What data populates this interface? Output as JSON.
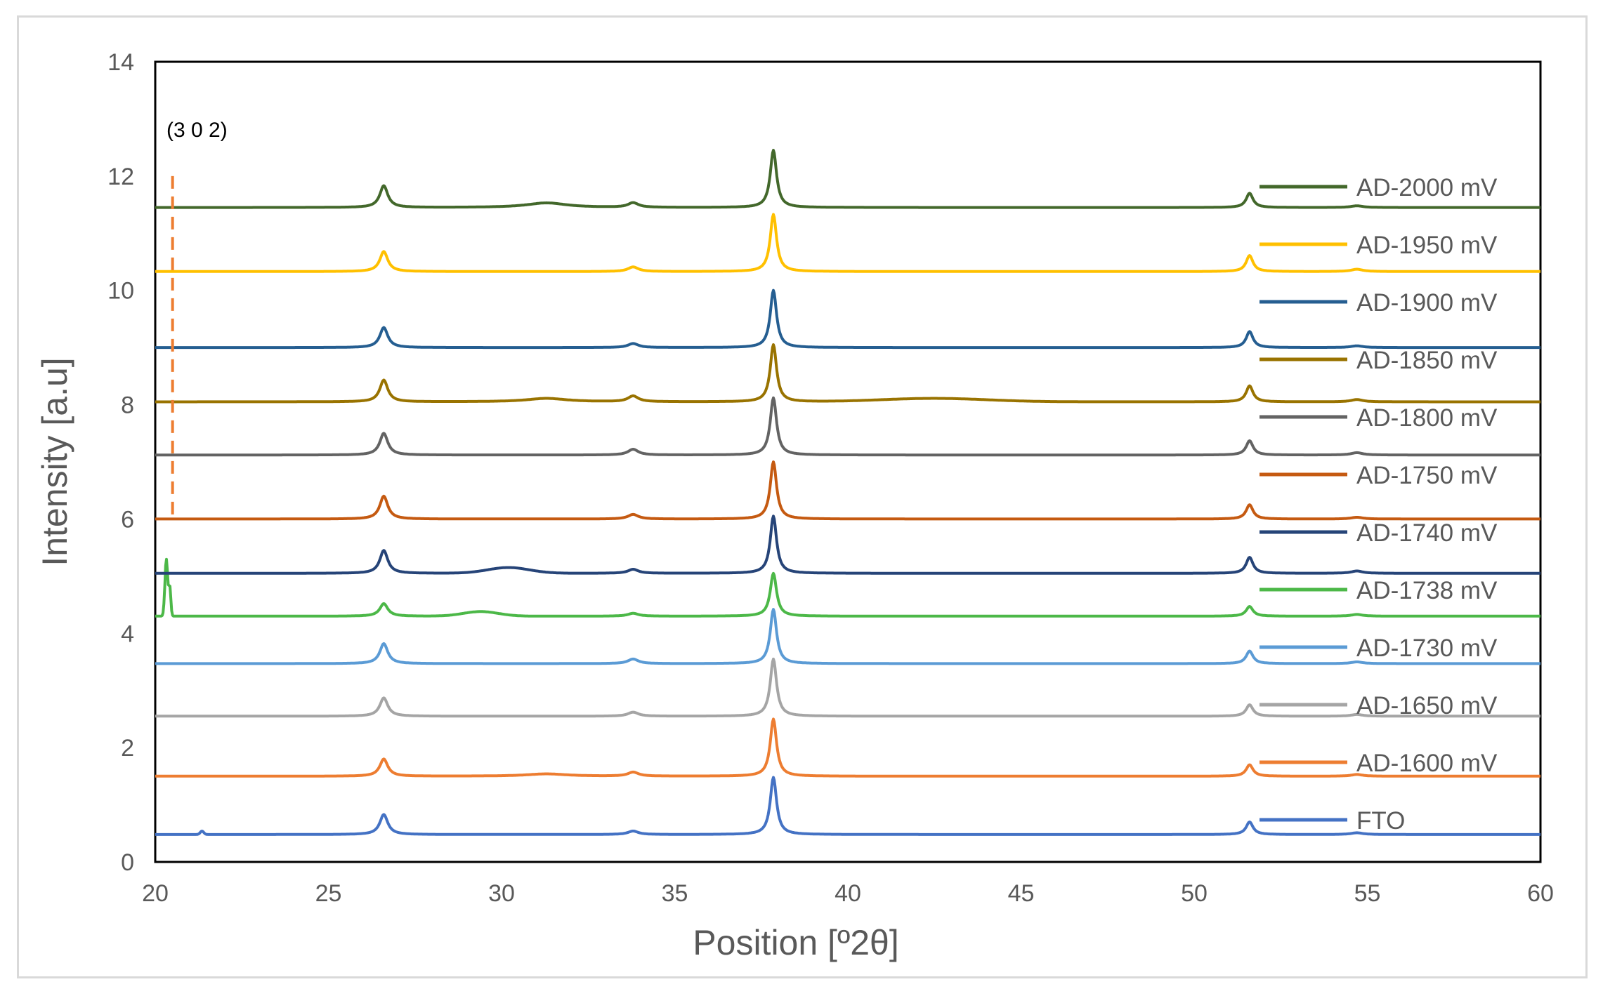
{
  "chart_data": {
    "type": "line",
    "title": "",
    "xlabel": "Position [º2θ]",
    "ylabel": "Intensity [a.u]",
    "xlim": [
      20,
      60
    ],
    "ylim": [
      0,
      14
    ],
    "xticks": [
      "20",
      "25",
      "30",
      "35",
      "40",
      "45",
      "50",
      "55",
      "60"
    ],
    "yticks": [
      "0",
      "2",
      "4",
      "6",
      "8",
      "10",
      "12",
      "14"
    ],
    "grid": false,
    "legend_position": "right",
    "annotation": {
      "text": "(3 0 2)",
      "x": 20.5,
      "y_from": 6.0,
      "y_to": 12.0,
      "color": "#ED7D31"
    },
    "peaks": {
      "positions": [
        26.6,
        31.3,
        33.8,
        37.85,
        51.6,
        54.7
      ],
      "widths": [
        0.14,
        0.7,
        0.18,
        0.11,
        0.12,
        0.2
      ]
    },
    "series": [
      {
        "name": "FTO",
        "color": "#4472C4",
        "baseline": 0.48,
        "slope": 0.0,
        "heights": [
          0.35,
          0.0,
          0.06,
          1.0,
          0.22,
          0.03
        ],
        "extra_peaks": [
          {
            "x": 21.35,
            "h": 0.06,
            "w": 0.05
          }
        ]
      },
      {
        "name": "AD-1600 mV",
        "color": "#ED7D31",
        "baseline": 1.5,
        "slope": 0.0,
        "heights": [
          0.3,
          0.04,
          0.07,
          1.0,
          0.2,
          0.03
        ],
        "extra_peaks": []
      },
      {
        "name": "AD-1650 mV",
        "color": "#A5A5A5",
        "baseline": 2.55,
        "slope": 0.0,
        "heights": [
          0.32,
          0.0,
          0.07,
          1.0,
          0.2,
          0.03
        ],
        "extra_peaks": []
      },
      {
        "name": "AD-1730 mV",
        "color": "#5B9BD5",
        "baseline": 3.47,
        "slope": 0.0,
        "heights": [
          0.35,
          0.0,
          0.08,
          0.95,
          0.22,
          0.03
        ],
        "extra_peaks": []
      },
      {
        "name": "AD-1738 mV",
        "color": "#4CB848",
        "baseline": 4.3,
        "slope": 0.0,
        "heights": [
          0.22,
          0.0,
          0.05,
          0.75,
          0.17,
          0.03
        ],
        "extra_peaks": [
          {
            "x": 29.4,
            "h": 0.08,
            "w": 0.5
          },
          {
            "x": 20.32,
            "h": 1.0,
            "w": 0.04
          },
          {
            "x": 20.42,
            "h": 0.5,
            "w": 0.03
          }
        ]
      },
      {
        "name": "AD-1740 mV",
        "color": "#264478",
        "baseline": 5.05,
        "slope": 0.0,
        "heights": [
          0.4,
          0.0,
          0.07,
          1.0,
          0.28,
          0.04
        ],
        "extra_peaks": [
          {
            "x": 30.2,
            "h": 0.1,
            "w": 0.6
          }
        ]
      },
      {
        "name": "AD-1750 mV",
        "color": "#C55A11",
        "baseline": 6.0,
        "slope": 0.0,
        "heights": [
          0.4,
          0.0,
          0.08,
          1.0,
          0.25,
          0.03
        ],
        "extra_peaks": []
      },
      {
        "name": "AD-1800 mV",
        "color": "#636363",
        "baseline": 7.12,
        "slope": 0.0,
        "heights": [
          0.38,
          0.0,
          0.1,
          1.0,
          0.25,
          0.04
        ],
        "extra_peaks": []
      },
      {
        "name": "AD-1850 mV",
        "color": "#997300",
        "baseline": 8.05,
        "slope": 0.0,
        "heights": [
          0.38,
          0.06,
          0.1,
          1.0,
          0.28,
          0.04
        ],
        "extra_peaks": [
          {
            "x": 42.5,
            "h": 0.06,
            "w": 1.5
          }
        ]
      },
      {
        "name": "AD-1900 mV",
        "color": "#255E91",
        "baseline": 9.0,
        "slope": 0.0,
        "heights": [
          0.35,
          0.0,
          0.07,
          1.0,
          0.28,
          0.03
        ],
        "extra_peaks": []
      },
      {
        "name": "AD-1950 mV",
        "color": "#FFC000",
        "baseline": 10.33,
        "slope": 0.0,
        "heights": [
          0.35,
          0.0,
          0.08,
          1.0,
          0.28,
          0.04
        ],
        "extra_peaks": []
      },
      {
        "name": "AD-2000 mV",
        "color": "#43682B",
        "baseline": 11.45,
        "slope": 0.0,
        "heights": [
          0.38,
          0.08,
          0.08,
          1.0,
          0.25,
          0.03
        ],
        "extra_peaks": []
      }
    ]
  }
}
